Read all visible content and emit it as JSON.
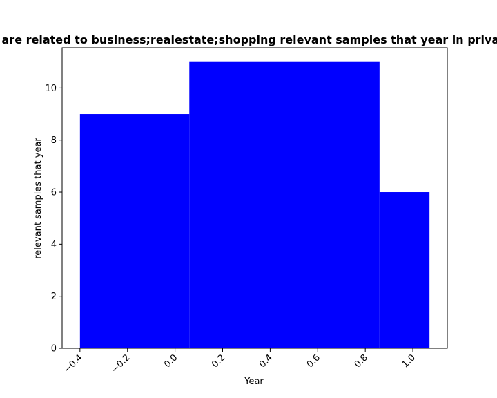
{
  "chart_data": {
    "type": "bar",
    "title": "ar are related to business;realestate;shopping relevant samples that year in private",
    "xlabel": "Year",
    "ylabel": "relevant samples that year",
    "bars": [
      {
        "x_start": -0.4,
        "x_end": 0.06,
        "value": 9
      },
      {
        "x_start": 0.06,
        "x_end": 0.86,
        "value": 11
      },
      {
        "x_start": 0.86,
        "x_end": 1.07,
        "value": 6
      }
    ],
    "xlim": [
      -0.475,
      1.145
    ],
    "ylim": [
      0,
      11.55
    ],
    "x_ticks": [
      -0.4,
      -0.2,
      0.0,
      0.2,
      0.4,
      0.6,
      0.8,
      1.0
    ],
    "x_tick_labels": [
      "−0.4",
      "−0.2",
      "0.0",
      "0.2",
      "0.4",
      "0.6",
      "0.8",
      "1.0"
    ],
    "y_ticks": [
      0,
      2,
      4,
      6,
      8,
      10
    ],
    "y_tick_labels": [
      "0",
      "2",
      "4",
      "6",
      "8",
      "10"
    ],
    "bar_color": "#0000ff",
    "grid": false
  }
}
